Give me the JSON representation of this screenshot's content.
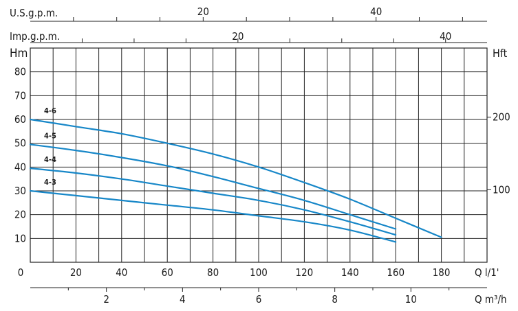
{
  "chart_data": {
    "type": "line",
    "title": "",
    "colors": {
      "curve": "#1787c8",
      "grid": "#222222"
    },
    "grid": true,
    "x_primary": {
      "label": "Q l/1'",
      "unit": "l/min",
      "range": [
        0,
        200
      ],
      "ticks": [
        0,
        20,
        40,
        60,
        80,
        100,
        120,
        140,
        160,
        180
      ]
    },
    "x_m3h": {
      "label": "Q m³/h",
      "ticks": [
        2,
        4,
        6,
        8,
        10
      ]
    },
    "x_usgpm": {
      "label": "U.S.g.p.m.",
      "ticks": [
        20,
        40
      ]
    },
    "x_impgpm": {
      "label": "Imp.g.p.m.",
      "ticks": [
        20,
        40
      ]
    },
    "y_left": {
      "label": "Hm",
      "range": [
        0,
        90
      ],
      "ticks": [
        10,
        20,
        30,
        40,
        50,
        60,
        70,
        80
      ]
    },
    "y_right": {
      "label": "Hft",
      "ticks": [
        100,
        200
      ]
    },
    "series": [
      {
        "name": "4-3",
        "x": [
          0,
          20,
          40,
          60,
          80,
          100,
          120,
          140,
          160
        ],
        "y": [
          30,
          28,
          26,
          24,
          22,
          19.5,
          17,
          13.5,
          8.5
        ]
      },
      {
        "name": "4-4",
        "x": [
          0,
          20,
          40,
          60,
          80,
          100,
          120,
          140,
          160
        ],
        "y": [
          39.5,
          37.5,
          35,
          32,
          29,
          26,
          22,
          17,
          11.5
        ]
      },
      {
        "name": "4-5",
        "x": [
          0,
          20,
          40,
          60,
          80,
          100,
          120,
          140,
          160
        ],
        "y": [
          49.5,
          47,
          44,
          40.5,
          36,
          31,
          26,
          20,
          14
        ]
      },
      {
        "name": "4-6",
        "x": [
          0,
          20,
          40,
          60,
          80,
          100,
          120,
          140,
          160,
          180
        ],
        "y": [
          60,
          57,
          54,
          50,
          45.5,
          40,
          33.5,
          26.5,
          18.5,
          10.5
        ]
      }
    ]
  }
}
